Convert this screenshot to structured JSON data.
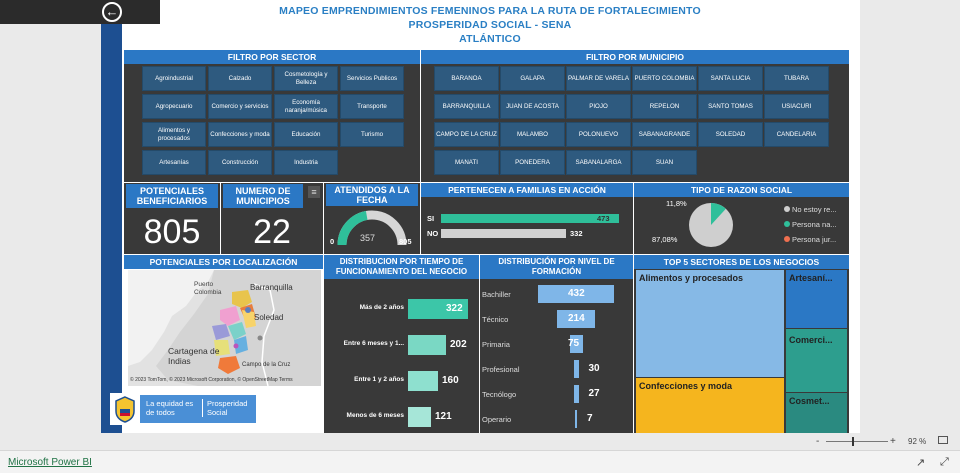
{
  "header": {
    "title_line1": "MAPEO EMPRENDIMIENTOS FEMENINOS PARA LA RUTA DE FORTALECIMIENTO",
    "title_line2": "PROSPERIDAD SOCIAL - SENA",
    "title_line3": "ATLÁNTICO"
  },
  "filtro_sector": {
    "title": "FILTRO POR SECTOR",
    "items": [
      "Agroindustrial",
      "Calzado",
      "Cosmetología y Belleza",
      "Servicios Publicos",
      "Agropecuario",
      "Comercio y servicios",
      "Economía naranja/música",
      "Transporte",
      "Alimentos y procesados",
      "Confecciones y moda",
      "Educación",
      "Turismo",
      "Artesanías",
      "Construcción",
      "Industria"
    ]
  },
  "filtro_municipio": {
    "title": "FILTRO POR MUNICIPIO",
    "items": [
      "BARANOA",
      "GALAPA",
      "PALMAR DE VARELA",
      "PUERTO COLOMBIA",
      "SANTA LUCIA",
      "TUBARA",
      "BARRANQUILLA",
      "JUAN DE ACOSTA",
      "PIOJO",
      "REPELON",
      "SANTO TOMAS",
      "USIACURI",
      "CAMPO DE LA CRUZ",
      "MALAMBO",
      "POLONUEVO",
      "SABANAGRANDE",
      "SOLEDAD",
      "CANDELARIA",
      "MANATI",
      "PONEDERA",
      "SABANALARGA",
      "SUAN"
    ]
  },
  "kpis": {
    "beneficiarios_label": "POTENCIALES BENEFICIARIOS",
    "beneficiarios_value": "805",
    "municipios_label": "NUMERO DE MUNICIPIOS",
    "municipios_value": "22"
  },
  "atendidos": {
    "title": "ATENDIDOS A LA FECHA",
    "min": "0",
    "value": "357",
    "max": "805",
    "fraction": 0.4435
  },
  "familias": {
    "title": "PERTENECEN A FAMILIAS EN ACCIÓN",
    "rows": [
      {
        "label": "SI",
        "value": "473",
        "n": 473,
        "color": "#2fbf9a"
      },
      {
        "label": "NO",
        "value": "332",
        "n": 332,
        "color": "#d0d0d0"
      }
    ]
  },
  "razon_social": {
    "title": "TIPO DE RAZON SOCIAL",
    "pct_small": "11,8%",
    "pct_large": "87,08%",
    "legend": [
      {
        "label": "No estoy re...",
        "color": "#cfcfcf"
      },
      {
        "label": "Persona na...",
        "color": "#2fbf9a"
      },
      {
        "label": "Persona jur...",
        "color": "#f07050"
      }
    ]
  },
  "mapa": {
    "title": "POTENCIALES POR LOCALIZACIÓN",
    "places": [
      "Puerto Colombia",
      "Barranquilla",
      "Soledad",
      "Cartagena de Indias",
      "Campo de la Cruz"
    ],
    "copyright": "© 2023 TomTom, © 2023 Microsoft Corporation, © OpenStreetMap  Terms"
  },
  "logo": {
    "text1": "La equidad es de todos",
    "text2": "Prosperidad Social"
  },
  "tiempo": {
    "title": "DISTRIBUCION POR TIEMPO DE FUNCIONAMIENTO DEL NEGOCIO",
    "bars": [
      {
        "label": "Más de 2 años",
        "value": "322",
        "n": 322,
        "color": "#3cc6a8"
      },
      {
        "label": "Entre 6 meses y 1...",
        "value": "202",
        "n": 202,
        "color": "#7ad8c4"
      },
      {
        "label": "Entre 1 y 2 años",
        "value": "160",
        "n": 160,
        "color": "#8ee0cf"
      },
      {
        "label": "Menos de 6 meses",
        "value": "121",
        "n": 121,
        "color": "#a6e6d8"
      }
    ]
  },
  "formacion": {
    "title": "DISTRIBUCIÓN POR NIVEL DE FORMACIÓN",
    "bars": [
      {
        "label": "Bachiller",
        "value": "432",
        "n": 432
      },
      {
        "label": "Técnico",
        "value": "214",
        "n": 214
      },
      {
        "label": "Primaria",
        "value": "75",
        "n": 75
      },
      {
        "label": "Profesional",
        "value": "30",
        "n": 30
      },
      {
        "label": "Tecnólogo",
        "value": "27",
        "n": 27
      },
      {
        "label": "Operario",
        "value": "7",
        "n": 7
      }
    ]
  },
  "sectores": {
    "title": "TOP 5 SECTORES DE LOS NEGOCIOS",
    "items": [
      "Alimentos y procesados",
      "Confecciones y moda",
      "Artesaní...",
      "Comerci...",
      "Cosmet..."
    ]
  },
  "chart_data": [
    {
      "type": "bar",
      "title": "PERTENECEN A FAMILIAS EN ACCIÓN",
      "categories": [
        "SI",
        "NO"
      ],
      "values": [
        473,
        332
      ]
    },
    {
      "type": "pie",
      "title": "TIPO DE RAZON SOCIAL",
      "categories": [
        "No estoy re...",
        "Persona na...",
        "Persona jur..."
      ],
      "values": [
        87.08,
        11.8,
        1.12
      ]
    },
    {
      "type": "bar",
      "title": "DISTRIBUCION POR TIEMPO DE FUNCIONAMIENTO DEL NEGOCIO",
      "categories": [
        "Más de 2 años",
        "Entre 6 meses y 1...",
        "Entre 1 y 2 años",
        "Menos de 6 meses"
      ],
      "values": [
        322,
        202,
        160,
        121
      ]
    },
    {
      "type": "bar",
      "title": "DISTRIBUCIÓN POR NIVEL DE FORMACIÓN",
      "categories": [
        "Bachiller",
        "Técnico",
        "Primaria",
        "Profesional",
        "Tecnólogo",
        "Operario"
      ],
      "values": [
        432,
        214,
        75,
        30,
        27,
        7
      ]
    }
  ],
  "status": {
    "zoom": "92 %",
    "app_link": "Microsoft Power BI"
  }
}
